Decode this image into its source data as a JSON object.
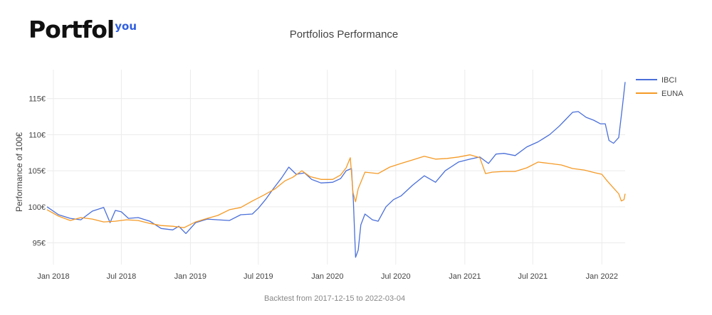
{
  "logo": {
    "main": "Portfol",
    "sup": "you"
  },
  "chart_data": {
    "type": "line",
    "title": "Portfolios Performance",
    "ylabel": "Performance of 100€",
    "xlabel": "",
    "footnote": "Backtest from 2017-12-15 to 2022-03-04",
    "xlim": [
      "2017-12-15",
      "2022-03-04"
    ],
    "ylim": [
      92.0,
      119.0
    ],
    "y_ticks": [
      {
        "value": 95,
        "label": "95€"
      },
      {
        "value": 100,
        "label": "100€"
      },
      {
        "value": 105,
        "label": "105€"
      },
      {
        "value": 110,
        "label": "110€"
      },
      {
        "value": 115,
        "label": "115€"
      }
    ],
    "x_ticks": [
      {
        "date": "2018-01-01",
        "label": "Jan 2018"
      },
      {
        "date": "2018-07-01",
        "label": "Jul 2018"
      },
      {
        "date": "2019-01-01",
        "label": "Jan 2019"
      },
      {
        "date": "2019-07-01",
        "label": "Jul 2019"
      },
      {
        "date": "2020-01-01",
        "label": "Jan 2020"
      },
      {
        "date": "2020-07-01",
        "label": "Jul 2020"
      },
      {
        "date": "2021-01-01",
        "label": "Jan 2021"
      },
      {
        "date": "2021-07-01",
        "label": "Jul 2021"
      },
      {
        "date": "2022-01-01",
        "label": "Jan 2022"
      }
    ],
    "grid": true,
    "legend_position": "top-right",
    "series": [
      {
        "name": "IBCI",
        "color": "#4a6fd9",
        "points": [
          [
            "2017-12-15",
            100.0
          ],
          [
            "2018-01-15",
            98.9
          ],
          [
            "2018-02-15",
            98.4
          ],
          [
            "2018-03-15",
            98.2
          ],
          [
            "2018-04-15",
            99.4
          ],
          [
            "2018-05-15",
            99.9
          ],
          [
            "2018-06-01",
            97.8
          ],
          [
            "2018-06-15",
            99.5
          ],
          [
            "2018-07-01",
            99.3
          ],
          [
            "2018-07-20",
            98.4
          ],
          [
            "2018-08-15",
            98.5
          ],
          [
            "2018-09-15",
            98.0
          ],
          [
            "2018-10-15",
            97.0
          ],
          [
            "2018-11-15",
            96.8
          ],
          [
            "2018-12-01",
            97.3
          ],
          [
            "2018-12-20",
            96.3
          ],
          [
            "2019-01-15",
            97.8
          ],
          [
            "2019-02-15",
            98.3
          ],
          [
            "2019-03-15",
            98.2
          ],
          [
            "2019-04-15",
            98.1
          ],
          [
            "2019-05-15",
            98.9
          ],
          [
            "2019-06-15",
            99.0
          ],
          [
            "2019-07-01",
            99.8
          ],
          [
            "2019-07-20",
            101.0
          ],
          [
            "2019-08-10",
            102.5
          ],
          [
            "2019-09-01",
            104.0
          ],
          [
            "2019-09-20",
            105.5
          ],
          [
            "2019-10-10",
            104.5
          ],
          [
            "2019-11-01",
            104.7
          ],
          [
            "2019-11-20",
            103.8
          ],
          [
            "2019-12-15",
            103.3
          ],
          [
            "2020-01-15",
            103.4
          ],
          [
            "2020-02-05",
            103.9
          ],
          [
            "2020-02-20",
            105.0
          ],
          [
            "2020-03-05",
            105.3
          ],
          [
            "2020-03-10",
            100.8
          ],
          [
            "2020-03-16",
            93.0
          ],
          [
            "2020-03-23",
            94.0
          ],
          [
            "2020-03-30",
            97.5
          ],
          [
            "2020-04-10",
            99.0
          ],
          [
            "2020-04-30",
            98.2
          ],
          [
            "2020-05-15",
            98.0
          ],
          [
            "2020-06-05",
            100.0
          ],
          [
            "2020-06-25",
            101.0
          ],
          [
            "2020-07-15",
            101.5
          ],
          [
            "2020-08-15",
            103.0
          ],
          [
            "2020-09-15",
            104.3
          ],
          [
            "2020-10-15",
            103.4
          ],
          [
            "2020-11-10",
            105.0
          ],
          [
            "2020-12-15",
            106.2
          ],
          [
            "2021-01-15",
            106.6
          ],
          [
            "2021-02-10",
            106.9
          ],
          [
            "2021-03-05",
            106.0
          ],
          [
            "2021-03-25",
            107.3
          ],
          [
            "2021-04-15",
            107.4
          ],
          [
            "2021-05-15",
            107.1
          ],
          [
            "2021-06-15",
            108.3
          ],
          [
            "2021-07-15",
            109.0
          ],
          [
            "2021-08-15",
            110.0
          ],
          [
            "2021-09-10",
            111.2
          ],
          [
            "2021-09-25",
            112.0
          ],
          [
            "2021-10-15",
            113.1
          ],
          [
            "2021-10-30",
            113.2
          ],
          [
            "2021-11-20",
            112.4
          ],
          [
            "2021-12-10",
            112.0
          ],
          [
            "2021-12-28",
            111.5
          ],
          [
            "2022-01-10",
            111.5
          ],
          [
            "2022-01-20",
            109.2
          ],
          [
            "2022-02-01",
            108.8
          ],
          [
            "2022-02-15",
            109.6
          ],
          [
            "2022-02-25",
            114.0
          ],
          [
            "2022-03-04",
            117.3
          ]
        ]
      },
      {
        "name": "EUNA",
        "color": "#f59a26",
        "points": [
          [
            "2017-12-15",
            99.6
          ],
          [
            "2018-01-15",
            98.7
          ],
          [
            "2018-02-15",
            98.1
          ],
          [
            "2018-03-15",
            98.5
          ],
          [
            "2018-04-15",
            98.3
          ],
          [
            "2018-05-15",
            97.9
          ],
          [
            "2018-06-15",
            98.0
          ],
          [
            "2018-07-15",
            98.2
          ],
          [
            "2018-08-15",
            98.1
          ],
          [
            "2018-09-15",
            97.7
          ],
          [
            "2018-10-15",
            97.4
          ],
          [
            "2018-11-15",
            97.3
          ],
          [
            "2018-12-15",
            97.1
          ],
          [
            "2019-01-15",
            97.9
          ],
          [
            "2019-02-15",
            98.4
          ],
          [
            "2019-03-15",
            98.8
          ],
          [
            "2019-04-15",
            99.6
          ],
          [
            "2019-05-15",
            99.9
          ],
          [
            "2019-06-15",
            100.8
          ],
          [
            "2019-07-15",
            101.6
          ],
          [
            "2019-08-15",
            102.5
          ],
          [
            "2019-09-10",
            103.6
          ],
          [
            "2019-10-01",
            104.1
          ],
          [
            "2019-10-25",
            105.0
          ],
          [
            "2019-11-15",
            104.2
          ],
          [
            "2019-12-15",
            103.8
          ],
          [
            "2020-01-15",
            103.8
          ],
          [
            "2020-02-05",
            104.4
          ],
          [
            "2020-02-20",
            105.4
          ],
          [
            "2020-03-02",
            106.8
          ],
          [
            "2020-03-09",
            102.0
          ],
          [
            "2020-03-16",
            100.7
          ],
          [
            "2020-03-23",
            102.5
          ],
          [
            "2020-04-10",
            104.8
          ],
          [
            "2020-05-15",
            104.6
          ],
          [
            "2020-06-15",
            105.5
          ],
          [
            "2020-07-15",
            106.0
          ],
          [
            "2020-08-15",
            106.5
          ],
          [
            "2020-09-15",
            107.0
          ],
          [
            "2020-10-15",
            106.6
          ],
          [
            "2020-11-15",
            106.7
          ],
          [
            "2020-12-15",
            106.9
          ],
          [
            "2021-01-15",
            107.2
          ],
          [
            "2021-02-10",
            106.8
          ],
          [
            "2021-02-25",
            104.6
          ],
          [
            "2021-03-15",
            104.8
          ],
          [
            "2021-04-15",
            104.9
          ],
          [
            "2021-05-15",
            104.9
          ],
          [
            "2021-06-15",
            105.4
          ],
          [
            "2021-07-15",
            106.2
          ],
          [
            "2021-08-15",
            106.0
          ],
          [
            "2021-09-15",
            105.8
          ],
          [
            "2021-10-15",
            105.3
          ],
          [
            "2021-11-15",
            105.1
          ],
          [
            "2021-12-15",
            104.7
          ],
          [
            "2022-01-01",
            104.5
          ],
          [
            "2022-01-15",
            103.6
          ],
          [
            "2022-02-01",
            102.6
          ],
          [
            "2022-02-15",
            101.8
          ],
          [
            "2022-02-22",
            100.8
          ],
          [
            "2022-03-01",
            101.0
          ],
          [
            "2022-03-04",
            101.8
          ]
        ]
      }
    ]
  }
}
